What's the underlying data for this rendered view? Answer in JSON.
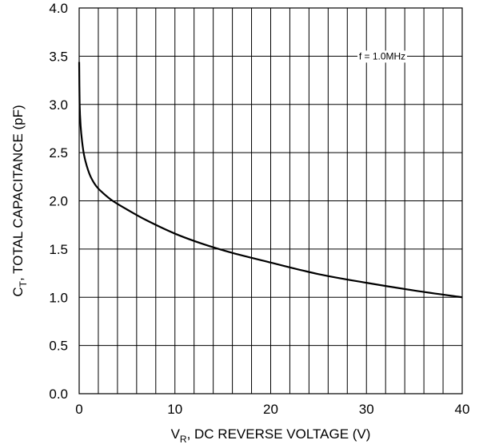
{
  "chart_data": {
    "type": "line",
    "x_label": {
      "main": "V",
      "sub": "R",
      "rest": ", DC REVERSE VOLTAGE (V)"
    },
    "y_label": {
      "main": "C",
      "sub": "T",
      "rest": ", TOTAL CAPACITANCE (pF)"
    },
    "xlim": [
      0,
      40
    ],
    "ylim": [
      0,
      4.0
    ],
    "x_ticks": [
      0,
      10,
      20,
      30,
      40
    ],
    "x_tick_labels": [
      "0",
      "10",
      "20",
      "30",
      "40"
    ],
    "x_grid_step": 2,
    "y_ticks": [
      0,
      0.5,
      1.0,
      1.5,
      2.0,
      2.5,
      3.0,
      3.5,
      4.0
    ],
    "y_tick_labels": [
      "0.0",
      "0.5",
      "1.0",
      "1.5",
      "2.0",
      "2.5",
      "3.0",
      "3.5",
      "4.0"
    ],
    "grid": true,
    "annotation": "f = 1.0MHz",
    "series": [
      {
        "x": [
          0.0,
          0.05,
          0.15,
          0.3,
          0.5,
          0.8,
          1.2,
          1.8,
          2.5,
          3.5,
          5,
          7,
          10,
          13,
          16,
          20,
          25,
          30,
          35,
          40
        ],
        "y": [
          3.44,
          3.0,
          2.78,
          2.62,
          2.48,
          2.36,
          2.25,
          2.15,
          2.08,
          2.0,
          1.91,
          1.8,
          1.66,
          1.55,
          1.46,
          1.36,
          1.24,
          1.15,
          1.07,
          1.0
        ]
      }
    ]
  }
}
